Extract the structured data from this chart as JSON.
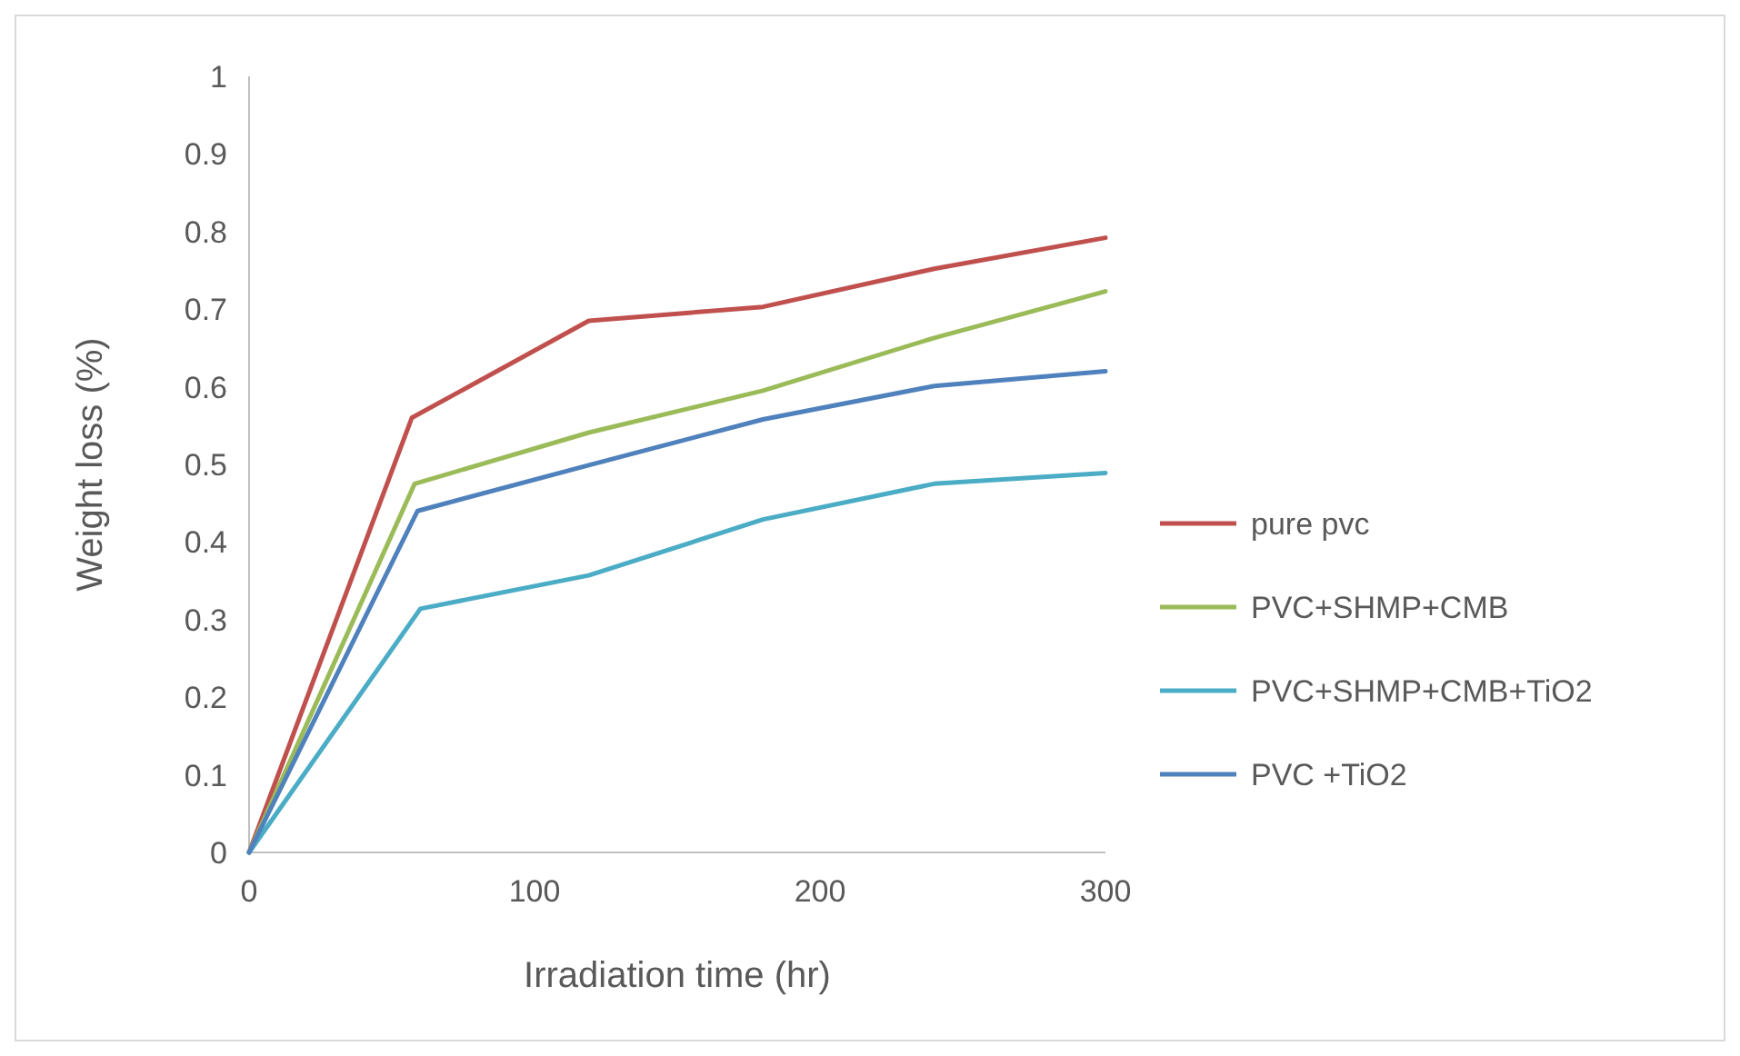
{
  "chart_data": {
    "type": "line",
    "xlabel": "Irradiation time (hr)",
    "ylabel": "Weight loss (%)",
    "xlim": [
      0,
      300
    ],
    "xticks": [
      0,
      100,
      200,
      300
    ],
    "ylim": [
      0,
      1
    ],
    "yticks": [
      0,
      0.1,
      0.2,
      0.3,
      0.4,
      0.5,
      0.6,
      0.7,
      0.8,
      0.9,
      1
    ],
    "grid": false,
    "legend": "right",
    "marker": "none",
    "line_style": "solid",
    "series": [
      {
        "name": "pure pvc",
        "color": "#c0504d",
        "x": [
          0,
          57,
          119,
          180,
          240,
          300
        ],
        "values": [
          0,
          0.56,
          0.685,
          0.703,
          0.752,
          0.792
        ]
      },
      {
        "name": "PVC+SHMP+CMB",
        "color": "#9bbb59",
        "x": [
          0,
          58,
          119,
          180,
          240,
          300
        ],
        "values": [
          0,
          0.475,
          0.541,
          0.595,
          0.663,
          0.723
        ]
      },
      {
        "name": "PVC+SHMP+CMB+TiO2",
        "color": "#4bacc6",
        "x": [
          0,
          60,
          119,
          180,
          240,
          300
        ],
        "values": [
          0,
          0.314,
          0.357,
          0.429,
          0.475,
          0.489
        ]
      },
      {
        "name": "PVC +TiO2",
        "color": "#4f81bd",
        "x": [
          0,
          59,
          119,
          180,
          240,
          300
        ],
        "values": [
          0,
          0.44,
          0.499,
          0.558,
          0.601,
          0.62
        ]
      }
    ]
  }
}
